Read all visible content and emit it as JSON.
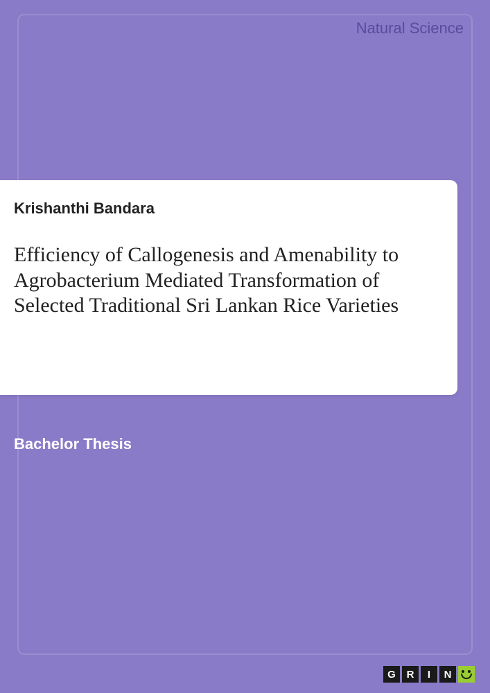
{
  "cover": {
    "category": "Natural Science",
    "author": "Krishanthi Bandara",
    "title": "Efficiency of Callogenesis and Amenability to Agrobacterium Mediated Transformation of Selected Traditional Sri Lankan Rice Varieties",
    "doc_type": "Bachelor Thesis",
    "publisher_letters": [
      "G",
      "R",
      "I",
      "N"
    ],
    "colors": {
      "background": "#8a7bc8",
      "card": "#ffffff",
      "category_text": "#5a4a9e",
      "doc_type_text": "#ffffff",
      "logo_bg": "#1a1a1a",
      "logo_smile_bg": "#9acd32"
    },
    "typography": {
      "category_fontsize": 22,
      "author_fontsize": 22,
      "title_fontsize": 30,
      "doc_type_fontsize": 22
    }
  }
}
